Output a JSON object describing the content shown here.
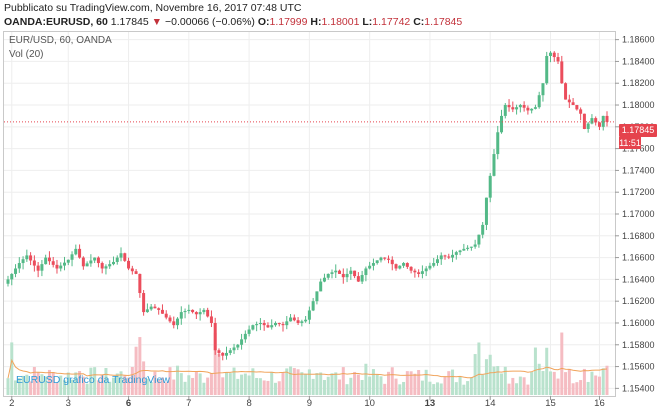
{
  "header": {
    "published": "Pubblicato su TradingView.com, Novembre 16, 2017 07:48 UTC",
    "symbol": "OANDA:EURUSD, 60",
    "price": "1.17845",
    "change_arrow": "▼",
    "change": "−0.00066 (−0.06%)",
    "o_label": "O:",
    "o_value": "1.17999",
    "h_label": "H:",
    "h_value": "1.18001",
    "l_label": "L:",
    "l_value": "1.17742",
    "c_label": "C:",
    "c_value": "1.17845"
  },
  "legend": {
    "symbol": "EUR/USD, 60, OANDA",
    "volume": "Vol (20)"
  },
  "price_tag": "1.17845",
  "timer_tag": "11:51",
  "watermark": "EURUSD grafico da TradingView",
  "colors": {
    "up": "#53b987",
    "down": "#eb4d5c",
    "vol_up": "#b9e2cd",
    "vol_down": "#f5bcc2",
    "vol_ma": "#f0a35a",
    "price_line": "#e5434d",
    "grid": "#eeeeee"
  },
  "chart_data": {
    "type": "candlestick",
    "y_axis_ticks": [
      "1.18600",
      "1.18400",
      "1.18200",
      "1.18000",
      "1.17800",
      "1.17600",
      "1.17400",
      "1.17200",
      "1.17000",
      "1.16800",
      "1.16600",
      "1.16400",
      "1.16200",
      "1.16000",
      "1.15800",
      "1.15600",
      "1.15400"
    ],
    "ylim": [
      1.1533,
      1.1867
    ],
    "x_axis_ticks": [
      {
        "label": "2",
        "bold": false
      },
      {
        "label": "3",
        "bold": false
      },
      {
        "label": "6",
        "bold": true
      },
      {
        "label": "7",
        "bold": false
      },
      {
        "label": "8",
        "bold": false
      },
      {
        "label": "9",
        "bold": false
      },
      {
        "label": "10",
        "bold": false
      },
      {
        "label": "13",
        "bold": true
      },
      {
        "label": "14",
        "bold": false
      },
      {
        "label": "15",
        "bold": false
      },
      {
        "label": "16",
        "bold": false
      }
    ],
    "last_price": 1.17845,
    "close_path": [
      [
        0,
        1.164
      ],
      [
        3,
        1.1655
      ],
      [
        5,
        1.1662
      ],
      [
        8,
        1.1648
      ],
      [
        10,
        1.166
      ],
      [
        13,
        1.165
      ],
      [
        16,
        1.1658
      ],
      [
        18,
        1.1668
      ],
      [
        20,
        1.1652
      ],
      [
        23,
        1.166
      ],
      [
        25,
        1.165
      ],
      [
        28,
        1.1656
      ],
      [
        30,
        1.1664
      ],
      [
        32,
        1.165
      ],
      [
        34,
        1.1645
      ],
      [
        36,
        1.161
      ],
      [
        38,
        1.1615
      ],
      [
        40,
        1.1612
      ],
      [
        42,
        1.1605
      ],
      [
        44,
        1.1598
      ],
      [
        46,
        1.161
      ],
      [
        48,
        1.1612
      ],
      [
        50,
        1.1608
      ],
      [
        52,
        1.1612
      ],
      [
        54,
        1.16
      ],
      [
        55,
        1.1575
      ],
      [
        57,
        1.157
      ],
      [
        59,
        1.1575
      ],
      [
        61,
        1.158
      ],
      [
        63,
        1.159
      ],
      [
        65,
        1.1598
      ],
      [
        67,
        1.16
      ],
      [
        69,
        1.1596
      ],
      [
        71,
        1.16
      ],
      [
        73,
        1.1598
      ],
      [
        75,
        1.1605
      ],
      [
        77,
        1.16
      ],
      [
        79,
        1.1603
      ],
      [
        81,
        1.162
      ],
      [
        83,
        1.1638
      ],
      [
        85,
        1.1645
      ],
      [
        87,
        1.1648
      ],
      [
        89,
        1.1642
      ],
      [
        91,
        1.1648
      ],
      [
        93,
        1.1638
      ],
      [
        95,
        1.165
      ],
      [
        97,
        1.1655
      ],
      [
        99,
        1.166
      ],
      [
        101,
        1.1658
      ],
      [
        103,
        1.165
      ],
      [
        105,
        1.1655
      ],
      [
        107,
        1.1648
      ],
      [
        109,
        1.1645
      ],
      [
        111,
        1.165
      ],
      [
        113,
        1.1655
      ],
      [
        115,
        1.1662
      ],
      [
        117,
        1.166
      ],
      [
        119,
        1.1665
      ],
      [
        121,
        1.1668
      ],
      [
        123,
        1.167
      ],
      [
        124,
        1.1672
      ],
      [
        126,
        1.169
      ],
      [
        127,
        1.1715
      ],
      [
        128,
        1.1735
      ],
      [
        129,
        1.1755
      ],
      [
        130,
        1.1775
      ],
      [
        131,
        1.179
      ],
      [
        132,
        1.18
      ],
      [
        134,
        1.1796
      ],
      [
        136,
        1.18
      ],
      [
        138,
        1.1795
      ],
      [
        140,
        1.1798
      ],
      [
        142,
        1.182
      ],
      [
        143,
        1.1845
      ],
      [
        144,
        1.1848
      ],
      [
        145,
        1.1844
      ],
      [
        146,
        1.184
      ],
      [
        147,
        1.182
      ],
      [
        148,
        1.1805
      ],
      [
        150,
        1.18
      ],
      [
        152,
        1.1792
      ],
      [
        153,
        1.1778
      ],
      [
        155,
        1.1788
      ],
      [
        157,
        1.178
      ],
      [
        158,
        1.179
      ],
      [
        159,
        1.17845
      ]
    ],
    "n_bars": 160
  }
}
